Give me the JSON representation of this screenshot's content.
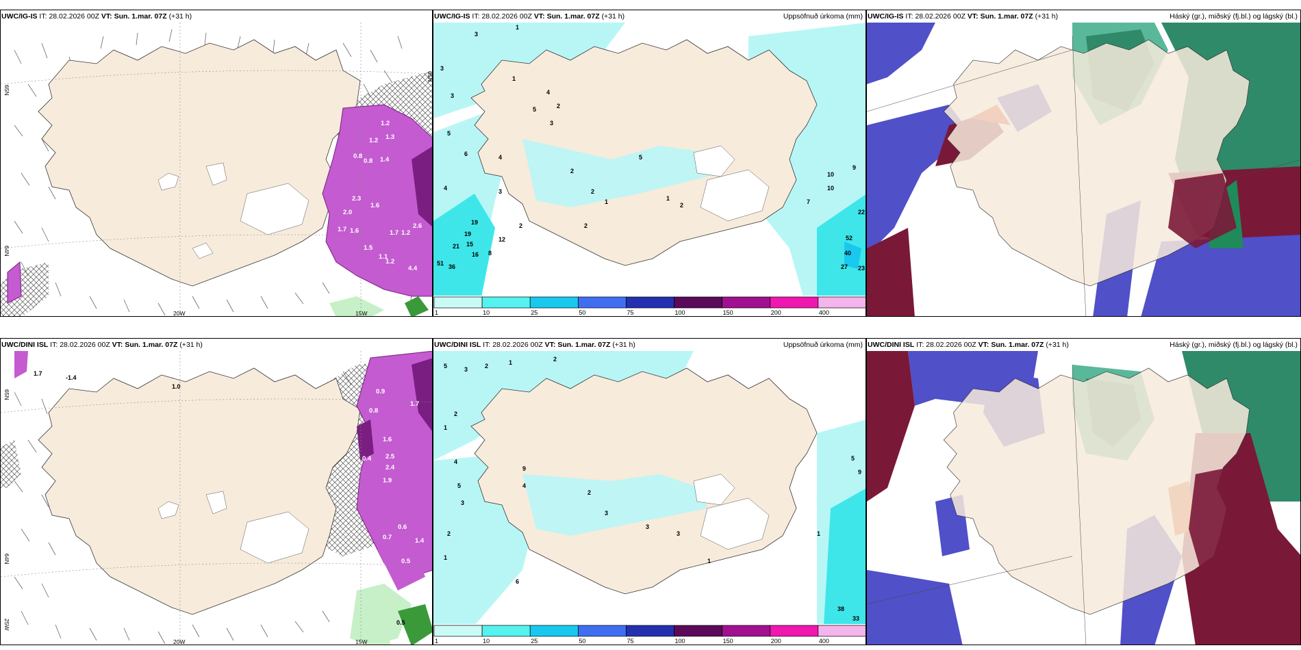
{
  "panels": [
    {
      "model": "UWC/IG-IS",
      "it_label": "IT:",
      "it": "28.02.2026 00Z",
      "vt_label": "VT:",
      "vt": "Sun. 1.mar. 07Z",
      "lead": "(+31 h)",
      "right_title": "",
      "axis": {
        "lat_n": [
          "65N",
          "64N"
        ],
        "lat_e": [
          "65N"
        ],
        "lon": [
          "20W",
          "15W"
        ]
      },
      "values": [
        "1.2",
        "1.3",
        "0.8",
        "1.4",
        "1.6",
        "2.0",
        "2.3",
        "1.7",
        "1.5",
        "1.1",
        "2.6",
        "4.4"
      ]
    },
    {
      "model": "UWC/IG-IS",
      "it_label": "IT:",
      "it": "28.02.2026 00Z",
      "vt_label": "VT:",
      "vt": "Sun. 1.mar. 07Z",
      "lead": "(+31 h)",
      "right_title": "Uppsöfnuð úrkoma (mm)",
      "values": [
        "3",
        "1",
        "4",
        "5",
        "2",
        "6",
        "19",
        "21",
        "15",
        "16",
        "12",
        "8",
        "51",
        "36",
        "10",
        "9",
        "7",
        "27",
        "22",
        "40",
        "52",
        "23"
      ]
    },
    {
      "model": "UWC/IG-IS",
      "it_label": "IT:",
      "it": "28.02.2026 00Z",
      "vt_label": "VT:",
      "vt": "Sun. 1.mar. 07Z",
      "lead": "(+31 h)",
      "right_title": "Háský (gr.), miðský (fj.bl.) og lágský (bl.)"
    },
    {
      "model": "UWC/DINI ISL",
      "it_label": "IT:",
      "it": "28.02.2026 00Z",
      "vt_label": "VT:",
      "vt": "Sun. 1.mar. 07Z",
      "lead": "(+31 h)",
      "right_title": "",
      "axis": {
        "lat_n": [
          "65N",
          "64N",
          "25W"
        ],
        "lon": [
          "20W",
          "15W"
        ]
      },
      "values": [
        "1.7",
        "-1.4",
        "1.0",
        "0.9",
        "0.8",
        "1.6",
        "2.5",
        "2.4",
        "1.9",
        "0.4",
        "0.7",
        "0.6",
        "0.5",
        "1.4"
      ]
    },
    {
      "model": "UWC/DINI ISL",
      "it_label": "IT:",
      "it": "28.02.2026 00Z",
      "vt_label": "VT:",
      "vt": "Sun. 1.mar. 07Z",
      "lead": "(+31 h)",
      "right_title": "Uppsöfnuð úrkoma (mm)",
      "values": [
        "5",
        "3",
        "2",
        "1",
        "4",
        "6",
        "9",
        "38",
        "33"
      ]
    },
    {
      "model": "UWC/DINI ISL",
      "it_label": "IT:",
      "it": "28.02.2026 00Z",
      "vt_label": "VT:",
      "vt": "Sun. 1.mar. 07Z",
      "lead": "(+31 h)",
      "right_title": "Háský (gr.), miðský (fj.bl.) og lágský (bl.)"
    }
  ],
  "colorbar": {
    "ticks": [
      "1",
      "10",
      "25",
      "50",
      "75",
      "100",
      "150",
      "200",
      "400"
    ],
    "colors": [
      "#c8fbf6",
      "#55f2ef",
      "#18c8ee",
      "#3f6ff0",
      "#2430b0",
      "#5a0a58",
      "#a01090",
      "#f016b0",
      "#f4b4ec"
    ]
  },
  "palette": {
    "land": "#f7ebdc",
    "precip_light": "#b8f6f6",
    "precip_mid": "#3ee6ea",
    "purple": "#c45bd0",
    "dark_purple": "#7a1e82",
    "green_low": "#c8f0c8",
    "cloud_blue": "#5050c8",
    "cloud_green": "#2f8a6a",
    "cloud_maroon": "#7a1838"
  }
}
